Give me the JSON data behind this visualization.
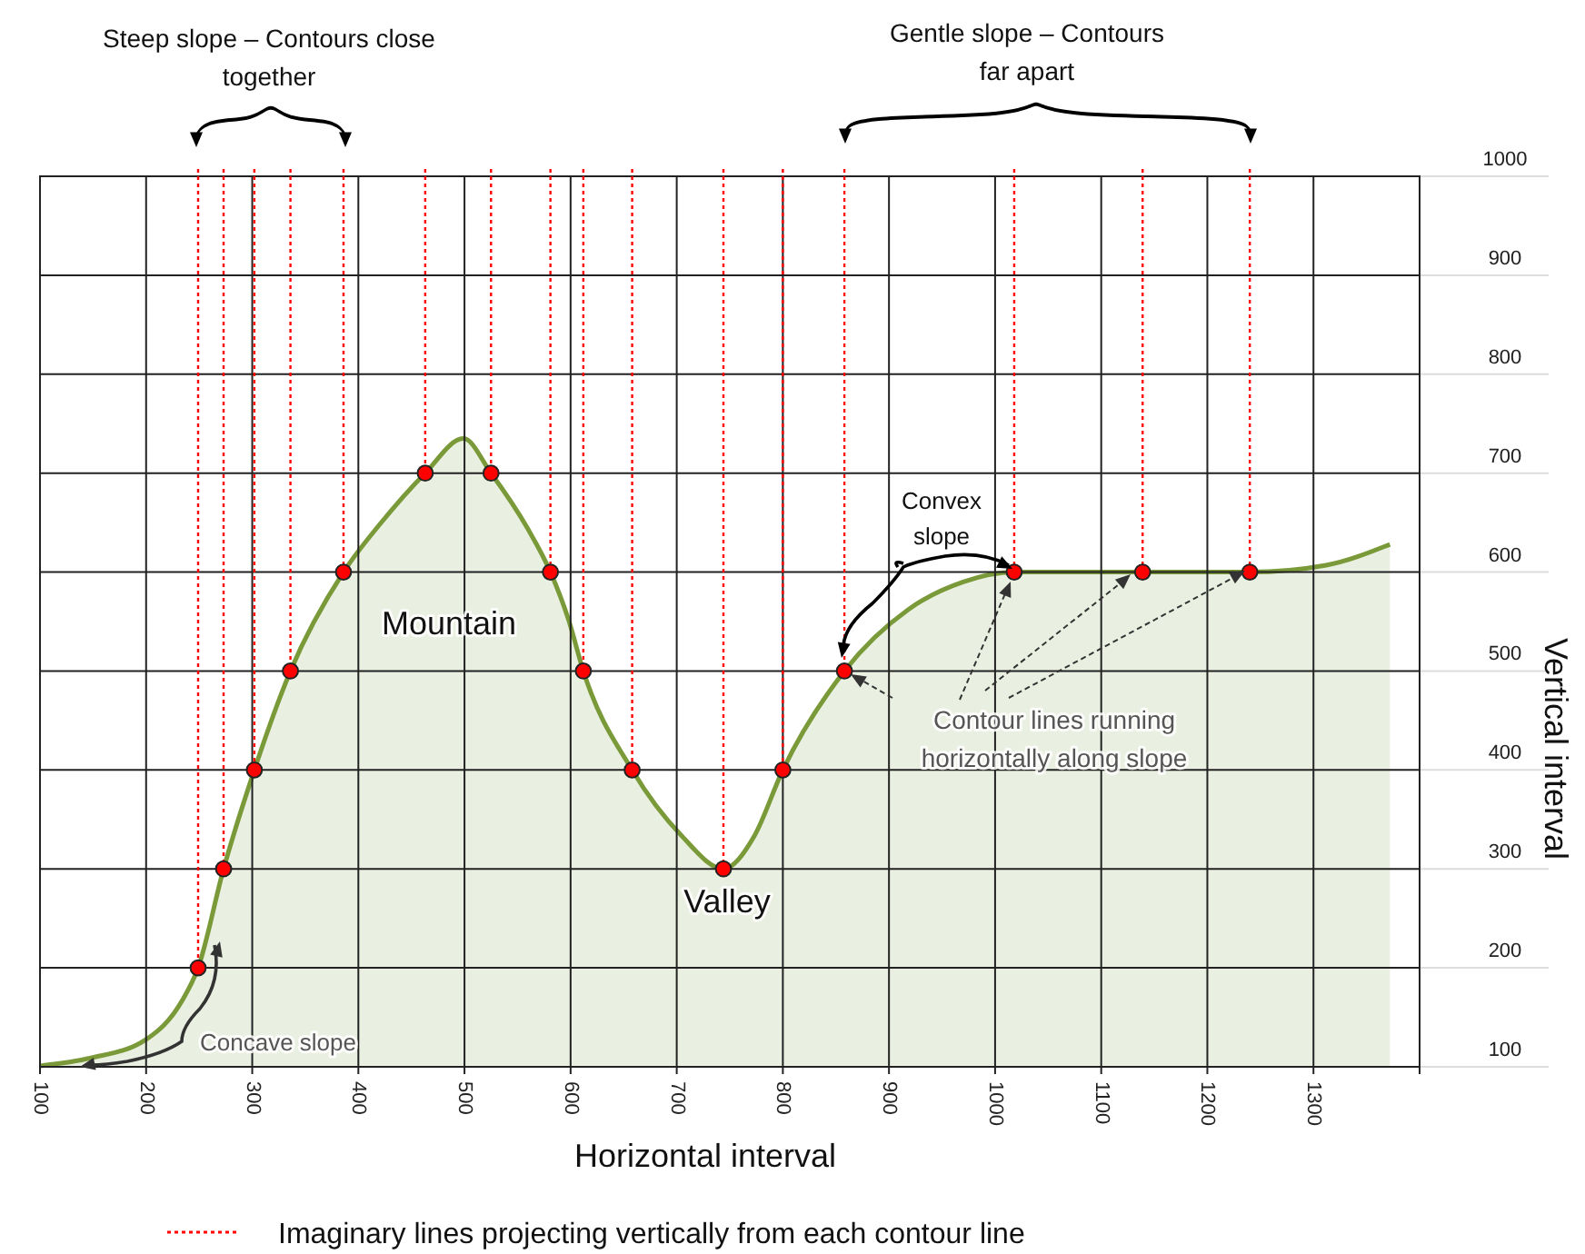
{
  "chart_data": {
    "type": "area",
    "xlabel": "Horizontal interval",
    "ylabel": "Vertical interval",
    "xlim": [
      100,
      1400
    ],
    "ylim": [
      100,
      1000
    ],
    "xticks": [
      100,
      200,
      300,
      400,
      500,
      600,
      700,
      800,
      900,
      1000,
      1100,
      1200,
      1300,
      {
        "value": 1400,
        "label": null
      }
    ],
    "yticks": [
      100,
      200,
      300,
      400,
      500,
      600,
      700,
      800,
      900,
      1000
    ],
    "grid": true,
    "marker": "none",
    "line_style": "solid",
    "series": [
      {
        "color": "#7a9a3a",
        "x": [
          100,
          148,
          199,
          234,
          249,
          273,
          302,
          336,
          386,
          420,
          463,
          499,
          525,
          559,
          581,
          598,
          612,
          658,
          705,
          744,
          773,
          800,
          858,
          918,
          970,
          1018,
          1139,
          1240,
          1312,
          1372
        ],
        "values": [
          101,
          109,
          127,
          167,
          200,
          300,
          400,
          500,
          600,
          648,
          700,
          735,
          700,
          645,
          600,
          552,
          500,
          400,
          333,
          300,
          333,
          400,
          500,
          562,
          590,
          600,
          600,
          600,
          607,
          628
        ]
      },
      {
        "type": "scatter",
        "color": "#ff0000",
        "marker": "circle",
        "x": [
          249,
          273,
          302,
          336,
          386,
          463,
          525,
          581,
          612,
          658,
          744,
          800,
          858,
          1018,
          1139,
          1240
        ],
        "values": [
          200,
          300,
          400,
          500,
          600,
          700,
          700,
          600,
          500,
          400,
          300,
          400,
          500,
          600,
          600,
          600
        ]
      }
    ],
    "ref_lines": [
      {
        "axis": "x",
        "value": 249,
        "color": "#ff0000",
        "line_style": "dotted"
      },
      {
        "axis": "x",
        "value": 273,
        "color": "#ff0000",
        "line_style": "dotted"
      },
      {
        "axis": "x",
        "value": 302,
        "color": "#ff0000",
        "line_style": "dotted"
      },
      {
        "axis": "x",
        "value": 336,
        "color": "#ff0000",
        "line_style": "dotted"
      },
      {
        "axis": "x",
        "value": 386,
        "color": "#ff0000",
        "line_style": "dotted"
      },
      {
        "axis": "x",
        "value": 463,
        "color": "#ff0000",
        "line_style": "dotted"
      },
      {
        "axis": "x",
        "value": 525,
        "color": "#ff0000",
        "line_style": "dotted"
      },
      {
        "axis": "x",
        "value": 581,
        "color": "#ff0000",
        "line_style": "dotted"
      },
      {
        "axis": "x",
        "value": 612,
        "color": "#ff0000",
        "line_style": "dotted"
      },
      {
        "axis": "x",
        "value": 658,
        "color": "#ff0000",
        "line_style": "dotted"
      },
      {
        "axis": "x",
        "value": 744,
        "color": "#ff0000",
        "line_style": "dotted"
      },
      {
        "axis": "x",
        "value": 800,
        "color": "#ff0000",
        "line_style": "dotted"
      },
      {
        "axis": "x",
        "value": 858,
        "color": "#ff0000",
        "line_style": "dotted"
      },
      {
        "axis": "x",
        "value": 1018,
        "color": "#ff0000",
        "line_style": "dotted"
      },
      {
        "axis": "x",
        "value": 1139,
        "color": "#ff0000",
        "line_style": "dotted"
      },
      {
        "axis": "x",
        "value": 1240,
        "color": "#ff0000",
        "line_style": "dotted"
      }
    ],
    "annotations": [
      "Steep slope – Contours close together",
      "Gentle slope – Contours far apart",
      "Convex slope",
      "Concave slope",
      "Mountain",
      "Valley",
      "Contour lines running horizontally along slope",
      "Imaginary lines projecting vertically from each contour line"
    ]
  }
}
